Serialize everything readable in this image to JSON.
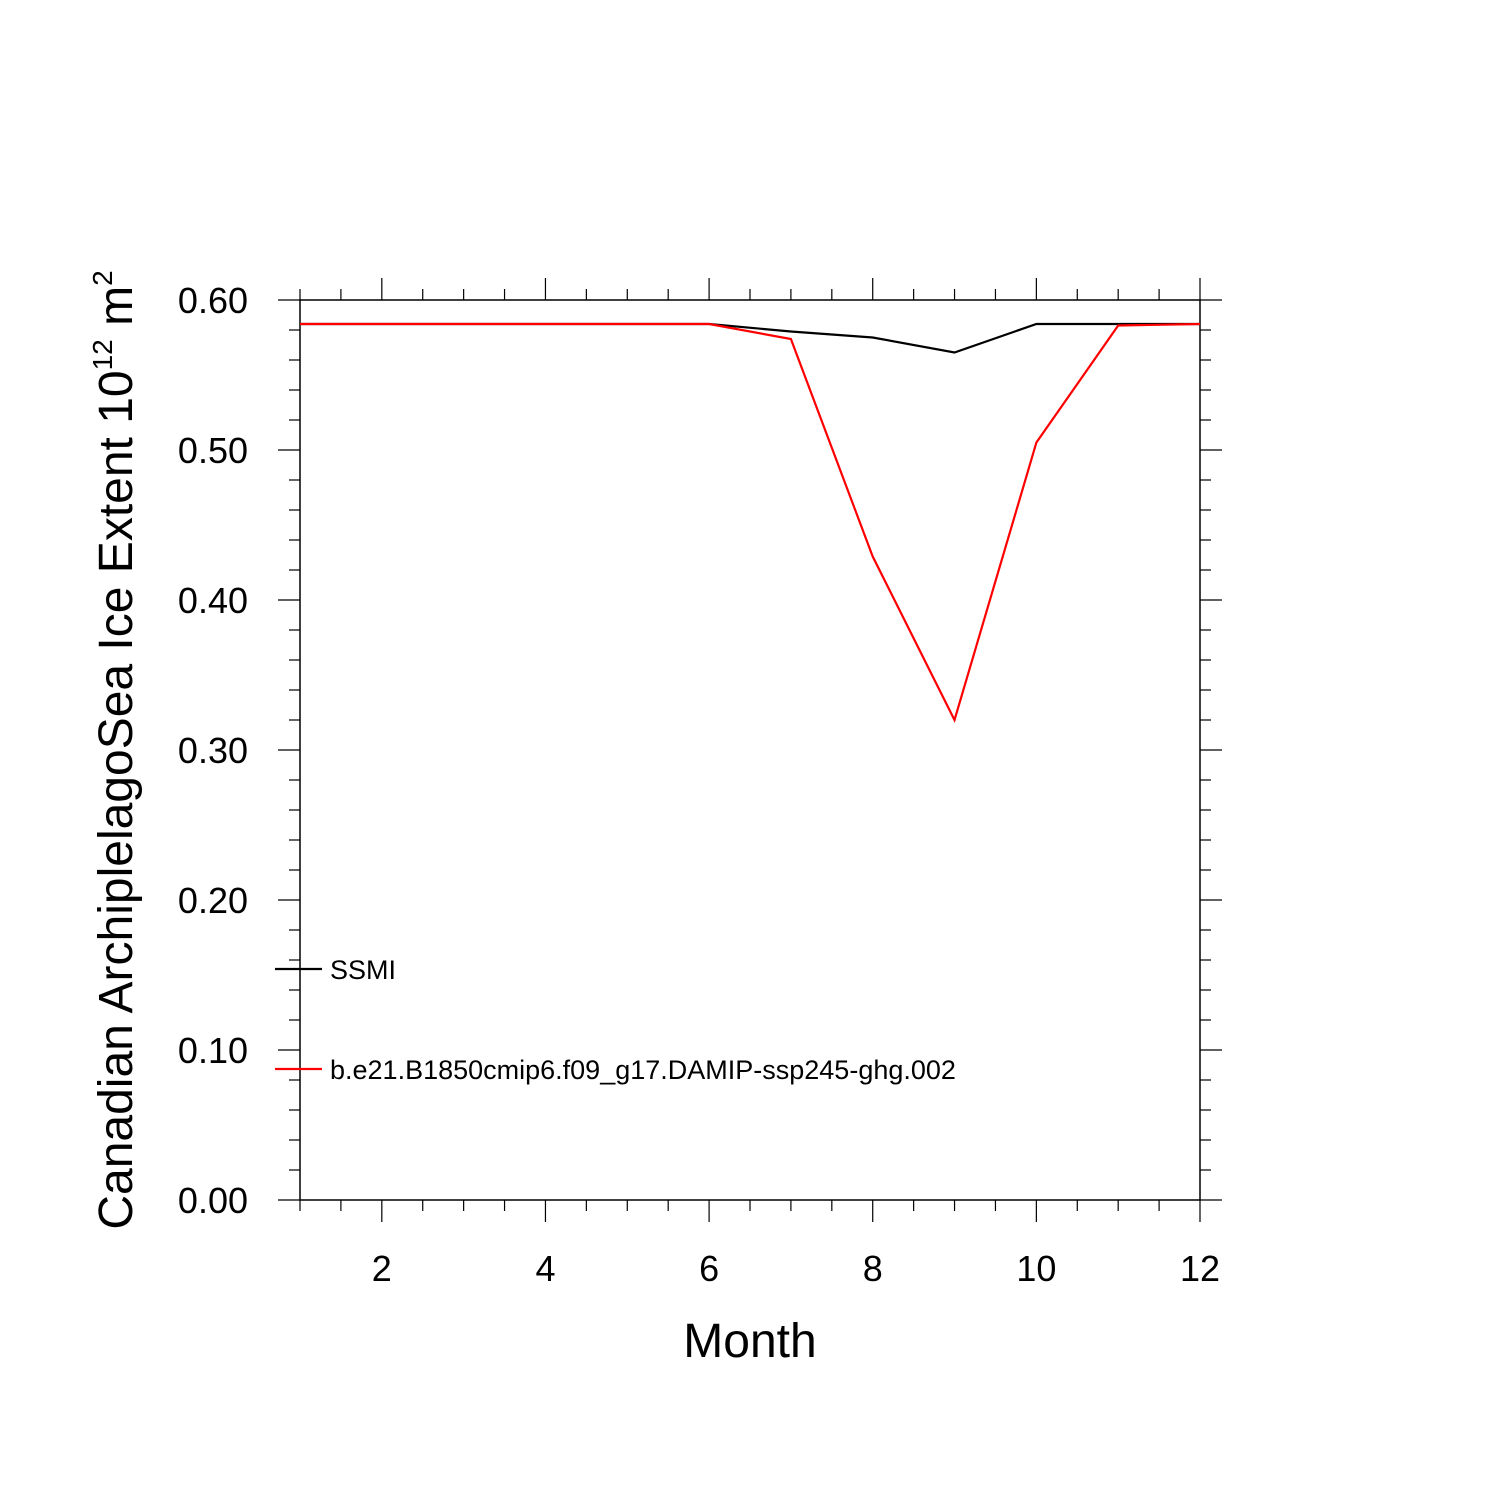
{
  "chart_data": {
    "type": "line",
    "title": "",
    "xlabel": "Month",
    "ylabel": {
      "main": "Canadian ArchiplelagoSea Ice Extent 10",
      "superscript_exp": "12",
      "unit": " m",
      "superscript_unit": "2"
    },
    "xlim": [
      1,
      12
    ],
    "ylim": [
      0.0,
      0.6
    ],
    "x_ticks": [
      2,
      4,
      6,
      8,
      10,
      12
    ],
    "x_tick_labels": [
      "2",
      "4",
      "6",
      "8",
      "10",
      "12"
    ],
    "y_ticks": [
      0.0,
      0.1,
      0.2,
      0.3,
      0.4,
      0.5,
      0.6
    ],
    "y_tick_labels": [
      "0.00",
      "0.10",
      "0.20",
      "0.30",
      "0.40",
      "0.50",
      "0.60"
    ],
    "grid": false,
    "legend_position": "bottom-left",
    "x": [
      1,
      2,
      3,
      4,
      5,
      6,
      7,
      8,
      9,
      10,
      11,
      12
    ],
    "series": [
      {
        "name": "SSMI",
        "color": "#000000",
        "values": [
          0.584,
          0.584,
          0.584,
          0.584,
          0.584,
          0.584,
          0.579,
          0.575,
          0.565,
          0.584,
          0.584,
          0.584
        ]
      },
      {
        "name": "b.e21.B1850cmip6.f09_g17.DAMIP-ssp245-ghg.002",
        "color": "#ff0000",
        "values": [
          0.584,
          0.584,
          0.584,
          0.584,
          0.584,
          0.584,
          0.574,
          0.429,
          0.32,
          0.505,
          0.583,
          0.584
        ]
      }
    ]
  }
}
